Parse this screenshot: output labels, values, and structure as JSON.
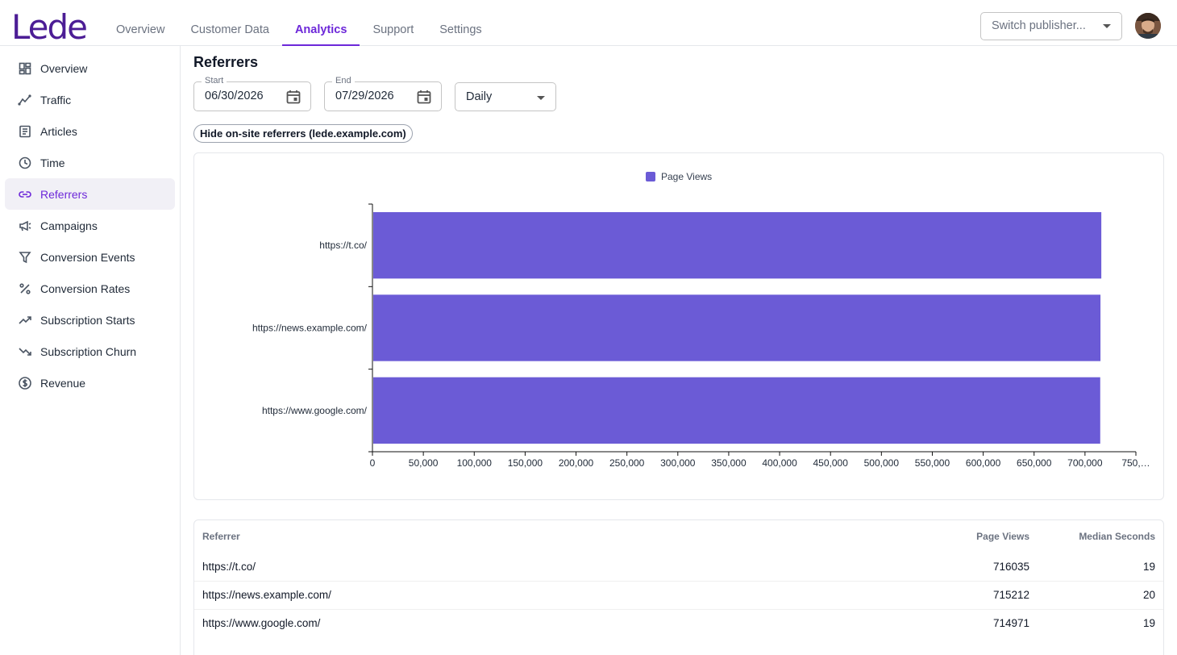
{
  "app": {
    "logo": "Lede",
    "nav_tabs": [
      {
        "label": "Overview"
      },
      {
        "label": "Customer Data"
      },
      {
        "label": "Analytics",
        "active": true
      },
      {
        "label": "Support"
      },
      {
        "label": "Settings"
      }
    ],
    "publisher_placeholder": "Switch publisher..."
  },
  "sidebar": {
    "items": [
      {
        "label": "Overview",
        "icon": "dashboard-icon"
      },
      {
        "label": "Traffic",
        "icon": "traffic-chart-icon"
      },
      {
        "label": "Articles",
        "icon": "article-icon"
      },
      {
        "label": "Time",
        "icon": "clock-icon"
      },
      {
        "label": "Referrers",
        "icon": "link-icon",
        "active": true
      },
      {
        "label": "Campaigns",
        "icon": "megaphone-icon"
      },
      {
        "label": "Conversion Events",
        "icon": "funnel-icon"
      },
      {
        "label": "Conversion Rates",
        "icon": "percent-icon"
      },
      {
        "label": "Subscription Starts",
        "icon": "trending-up-icon"
      },
      {
        "label": "Subscription Churn",
        "icon": "trending-down-icon"
      },
      {
        "label": "Revenue",
        "icon": "dollar-circle-icon"
      }
    ]
  },
  "main": {
    "title": "Referrers",
    "start_label": "Start",
    "start_value": "06/30/2026",
    "end_label": "End",
    "end_value": "07/29/2026",
    "frequency": "Daily",
    "toggle_label": "Hide on-site referrers (lede.example.com)"
  },
  "colors": {
    "accent": "#6d28d9",
    "bar": "#6b5bd6",
    "logo": "#4c1d95"
  },
  "chart_data": {
    "type": "bar",
    "orientation": "horizontal",
    "categories": [
      "https://t.co/",
      "https://news.example.com/",
      "https://www.google.com/"
    ],
    "series": [
      {
        "name": "Page Views",
        "values": [
          716035,
          715212,
          714971
        ]
      }
    ],
    "xlim": [
      0,
      750000
    ],
    "x_ticks": [
      "0",
      "50,000",
      "100,000",
      "150,000",
      "200,000",
      "250,000",
      "300,000",
      "350,000",
      "400,000",
      "450,000",
      "500,000",
      "550,000",
      "600,000",
      "650,000",
      "700,000",
      "750,…"
    ],
    "legend_position": "top-center",
    "grid": false
  },
  "table": {
    "headers": [
      "Referrer",
      "Page Views",
      "Median Seconds"
    ],
    "rows": [
      [
        "https://t.co/",
        "716035",
        "19"
      ],
      [
        "https://news.example.com/",
        "715212",
        "20"
      ],
      [
        "https://www.google.com/",
        "714971",
        "19"
      ]
    ]
  }
}
